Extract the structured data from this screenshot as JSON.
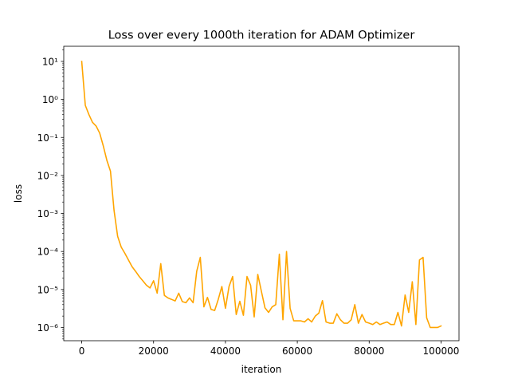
{
  "chart_data": {
    "type": "line",
    "title": "Loss over every 1000th iteration for ADAM Optimizer",
    "xlabel": "iteration",
    "ylabel": "loss",
    "xlim": [
      -5000,
      105000
    ],
    "ylim": [
      4.5e-07,
      25
    ],
    "yscale": "log",
    "grid": false,
    "x_ticks": [
      0,
      20000,
      40000,
      60000,
      80000,
      100000
    ],
    "x_tick_labels": [
      "0",
      "20000",
      "40000",
      "60000",
      "80000",
      "100000"
    ],
    "y_ticks": [
      1e-06,
      1e-05,
      0.0001,
      0.001,
      0.01,
      0.1,
      1,
      10
    ],
    "y_tick_labels": [
      "10⁻⁶",
      "10⁻⁵",
      "10⁻⁴",
      "10⁻³",
      "10⁻²",
      "10⁻¹",
      "10⁰",
      "10¹"
    ],
    "series": [
      {
        "color": "#ffa500",
        "x": [
          0,
          1000,
          2000,
          3000,
          4000,
          5000,
          6000,
          7000,
          8000,
          9000,
          10000,
          11000,
          12000,
          13000,
          14000,
          15000,
          16000,
          17000,
          18000,
          19000,
          20000,
          21000,
          22000,
          23000,
          24000,
          25000,
          26000,
          27000,
          28000,
          29000,
          30000,
          31000,
          32000,
          33000,
          34000,
          35000,
          36000,
          37000,
          38000,
          39000,
          40000,
          41000,
          42000,
          43000,
          44000,
          45000,
          46000,
          47000,
          48000,
          49000,
          50000,
          51000,
          52000,
          53000,
          54000,
          55000,
          56000,
          57000,
          58000,
          59000,
          60000,
          61000,
          62000,
          63000,
          64000,
          65000,
          66000,
          67000,
          68000,
          69000,
          70000,
          71000,
          72000,
          73000,
          74000,
          75000,
          76000,
          77000,
          78000,
          79000,
          80000,
          81000,
          82000,
          83000,
          84000,
          85000,
          86000,
          87000,
          88000,
          89000,
          90000,
          91000,
          92000,
          93000,
          94000,
          95000,
          96000,
          97000,
          98000,
          99000,
          100000
        ],
        "y": [
          10,
          0.7,
          0.4,
          0.25,
          0.2,
          0.13,
          0.06,
          0.025,
          0.013,
          0.0012,
          0.00025,
          0.00013,
          9e-05,
          6e-05,
          4e-05,
          3e-05,
          2.2e-05,
          1.7e-05,
          1.3e-05,
          1.1e-05,
          1.7e-05,
          8e-06,
          4.8e-05,
          7e-06,
          6e-06,
          5.5e-06,
          5e-06,
          8e-06,
          4.8e-06,
          4.5e-06,
          6e-06,
          4.5e-06,
          3e-05,
          7e-05,
          3.5e-06,
          6.2e-06,
          3e-06,
          2.8e-06,
          5.5e-06,
          1.2e-05,
          3.2e-06,
          1.2e-05,
          2.2e-05,
          2.2e-06,
          4.9e-06,
          2.1e-06,
          2.2e-05,
          1.3e-05,
          1.9e-06,
          2.5e-05,
          9e-06,
          3.3e-06,
          2.5e-06,
          3.5e-06,
          4e-06,
          8.5e-05,
          1.6e-06,
          0.0001,
          3.2e-06,
          1.5e-06,
          1.5e-06,
          1.5e-06,
          1.4e-06,
          1.7e-06,
          1.4e-06,
          2e-06,
          2.4e-06,
          5.1e-06,
          1.4e-06,
          1.3e-06,
          1.3e-06,
          2.3e-06,
          1.6e-06,
          1.3e-06,
          1.3e-06,
          1.6e-06,
          4e-06,
          1.3e-06,
          2.2e-06,
          1.4e-06,
          1.3e-06,
          1.2e-06,
          1.4e-06,
          1.2e-06,
          1.3e-06,
          1.4e-06,
          1.2e-06,
          1.2e-06,
          2.5e-06,
          1.1e-06,
          7.2e-06,
          2.5e-06,
          1.6e-05,
          1.2e-06,
          6e-05,
          7e-05,
          1.8e-06,
          1e-06,
          1e-06,
          1e-06,
          1.1e-06
        ]
      }
    ]
  }
}
